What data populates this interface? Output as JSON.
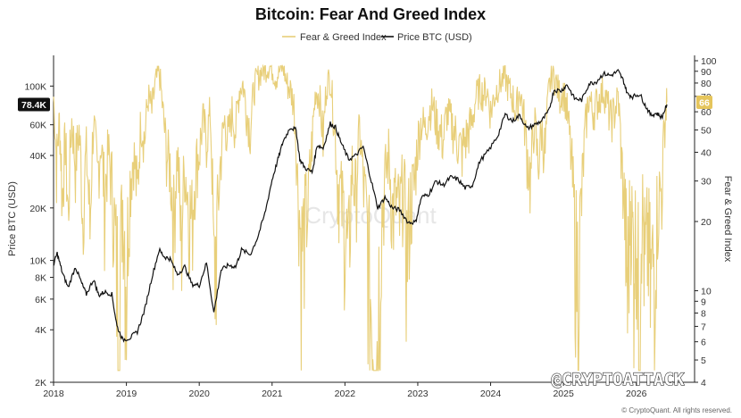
{
  "chart_data": {
    "type": "line",
    "title": "Bitcoin: Fear And Greed Index",
    "watermark": "CryptoQuant",
    "handle": "@CRYPTOATTACK",
    "footer": "© CryptoQuant. All rights reserved.",
    "legend": {
      "placement": "top-center",
      "entries": [
        "Fear & Greed Index",
        "Price BTC (USD)"
      ]
    },
    "x_ticks": [
      "2018",
      "2019",
      "2020",
      "2021",
      "2022",
      "2023",
      "2024",
      "2025",
      "2026"
    ],
    "y_left": {
      "label": "Price BTC (USD)",
      "scale": "log",
      "range": [
        2000,
        150000
      ],
      "ticks": [
        {
          "value": 100000,
          "label": "100K"
        },
        {
          "value": 60000,
          "label": "60K"
        },
        {
          "value": 40000,
          "label": "40K"
        },
        {
          "value": 20000,
          "label": "20K"
        },
        {
          "value": 10000,
          "label": "10K"
        },
        {
          "value": 8000,
          "label": "8K"
        },
        {
          "value": 6000,
          "label": "6K"
        },
        {
          "value": 4000,
          "label": "4K"
        },
        {
          "value": 2000,
          "label": "2K"
        }
      ],
      "current_label": "78.4K",
      "current_value": 78400
    },
    "y_right": {
      "label": "Fear & Greed Index",
      "scale": "log",
      "range": [
        4,
        100
      ],
      "ticks": [
        {
          "value": 100,
          "label": "100"
        },
        {
          "value": 90,
          "label": "90"
        },
        {
          "value": 80,
          "label": "80"
        },
        {
          "value": 70,
          "label": "70"
        },
        {
          "value": 60,
          "label": "60"
        },
        {
          "value": 50,
          "label": "50"
        },
        {
          "value": 40,
          "label": "40"
        },
        {
          "value": 30,
          "label": "30"
        },
        {
          "value": 20,
          "label": "20"
        },
        {
          "value": 10,
          "label": "10"
        },
        {
          "value": 9,
          "label": "9"
        },
        {
          "value": 8,
          "label": "8"
        },
        {
          "value": 7,
          "label": "7"
        },
        {
          "value": 6,
          "label": "6"
        },
        {
          "value": 5,
          "label": "5"
        },
        {
          "value": 4,
          "label": "4"
        }
      ],
      "current_label": "66",
      "current_value": 66
    },
    "colors": {
      "fng": "#e8cf7a",
      "price": "#111111",
      "badge_price": "#111111",
      "badge_fng": "#e5c55c"
    },
    "price_series": {
      "name": "Price BTC (USD)",
      "points": [
        [
          2018.0,
          9500
        ],
        [
          2018.05,
          11000
        ],
        [
          2018.12,
          8500
        ],
        [
          2018.2,
          7000
        ],
        [
          2018.3,
          9200
        ],
        [
          2018.38,
          7500
        ],
        [
          2018.45,
          6400
        ],
        [
          2018.55,
          7800
        ],
        [
          2018.62,
          6300
        ],
        [
          2018.7,
          6600
        ],
        [
          2018.8,
          6400
        ],
        [
          2018.87,
          4200
        ],
        [
          2018.95,
          3500
        ],
        [
          2019.05,
          3600
        ],
        [
          2019.15,
          3900
        ],
        [
          2019.25,
          5200
        ],
        [
          2019.35,
          8000
        ],
        [
          2019.45,
          11500
        ],
        [
          2019.52,
          10500
        ],
        [
          2019.6,
          10200
        ],
        [
          2019.7,
          8300
        ],
        [
          2019.8,
          9200
        ],
        [
          2019.9,
          7300
        ],
        [
          2020.0,
          7200
        ],
        [
          2020.1,
          9700
        ],
        [
          2020.2,
          5000
        ],
        [
          2020.3,
          8800
        ],
        [
          2020.4,
          9400
        ],
        [
          2020.5,
          9200
        ],
        [
          2020.58,
          11500
        ],
        [
          2020.7,
          10800
        ],
        [
          2020.8,
          13500
        ],
        [
          2020.9,
          18500
        ],
        [
          2021.0,
          29000
        ],
        [
          2021.08,
          38000
        ],
        [
          2021.15,
          48000
        ],
        [
          2021.25,
          58000
        ],
        [
          2021.33,
          56000
        ],
        [
          2021.38,
          38000
        ],
        [
          2021.45,
          34000
        ],
        [
          2021.55,
          32000
        ],
        [
          2021.62,
          46000
        ],
        [
          2021.7,
          44000
        ],
        [
          2021.8,
          61000
        ],
        [
          2021.87,
          58000
        ],
        [
          2021.95,
          47000
        ],
        [
          2022.05,
          38000
        ],
        [
          2022.15,
          40000
        ],
        [
          2022.25,
          45000
        ],
        [
          2022.35,
          30000
        ],
        [
          2022.45,
          20000
        ],
        [
          2022.55,
          23000
        ],
        [
          2022.65,
          20000
        ],
        [
          2022.75,
          19500
        ],
        [
          2022.87,
          16500
        ],
        [
          2022.97,
          16600
        ],
        [
          2023.05,
          23000
        ],
        [
          2023.15,
          24000
        ],
        [
          2023.25,
          28500
        ],
        [
          2023.35,
          27000
        ],
        [
          2023.45,
          30000
        ],
        [
          2023.55,
          29200
        ],
        [
          2023.65,
          26000
        ],
        [
          2023.75,
          27000
        ],
        [
          2023.85,
          37000
        ],
        [
          2023.97,
          42500
        ],
        [
          2024.1,
          52000
        ],
        [
          2024.2,
          69000
        ],
        [
          2024.3,
          63000
        ],
        [
          2024.4,
          68000
        ],
        [
          2024.5,
          57000
        ],
        [
          2024.6,
          60000
        ],
        [
          2024.7,
          63000
        ],
        [
          2024.8,
          72000
        ],
        [
          2024.87,
          95000
        ],
        [
          2024.97,
          94000
        ],
        [
          2025.05,
          102000
        ],
        [
          2025.15,
          85000
        ],
        [
          2025.25,
          83000
        ],
        [
          2025.35,
          103000
        ],
        [
          2025.45,
          106000
        ],
        [
          2025.55,
          118000
        ],
        [
          2025.65,
          115000
        ],
        [
          2025.75,
          122000
        ],
        [
          2025.82,
          108000
        ],
        [
          2025.88,
          90000
        ],
        [
          2025.95,
          87000
        ],
        [
          2026.05,
          90000
        ],
        [
          2026.12,
          78000
        ],
        [
          2026.2,
          68000
        ],
        [
          2026.28,
          70000
        ],
        [
          2026.35,
          66000
        ],
        [
          2026.42,
          78400
        ]
      ]
    },
    "fng_series": {
      "name": "Fear & Greed Index",
      "points": [
        [
          2018.0,
          70
        ],
        [
          2018.04,
          35
        ],
        [
          2018.08,
          55
        ],
        [
          2018.12,
          25
        ],
        [
          2018.16,
          45
        ],
        [
          2018.2,
          20
        ],
        [
          2018.25,
          55
        ],
        [
          2018.3,
          35
        ],
        [
          2018.35,
          50
        ],
        [
          2018.4,
          22
        ],
        [
          2018.45,
          40
        ],
        [
          2018.5,
          18
        ],
        [
          2018.55,
          55
        ],
        [
          2018.6,
          30
        ],
        [
          2018.65,
          45
        ],
        [
          2018.7,
          25
        ],
        [
          2018.75,
          40
        ],
        [
          2018.8,
          30
        ],
        [
          2018.85,
          15
        ],
        [
          2018.9,
          10
        ],
        [
          2018.95,
          25
        ],
        [
          2019.0,
          12
        ],
        [
          2019.05,
          30
        ],
        [
          2019.1,
          40
        ],
        [
          2019.15,
          25
        ],
        [
          2019.2,
          55
        ],
        [
          2019.25,
          45
        ],
        [
          2019.3,
          70
        ],
        [
          2019.35,
          60
        ],
        [
          2019.4,
          80
        ],
        [
          2019.45,
          90
        ],
        [
          2019.5,
          60
        ],
        [
          2019.55,
          40
        ],
        [
          2019.6,
          35
        ],
        [
          2019.65,
          20
        ],
        [
          2019.7,
          40
        ],
        [
          2019.75,
          15
        ],
        [
          2019.8,
          35
        ],
        [
          2019.85,
          25
        ],
        [
          2019.9,
          20
        ],
        [
          2019.95,
          35
        ],
        [
          2020.0,
          40
        ],
        [
          2020.05,
          55
        ],
        [
          2020.1,
          45
        ],
        [
          2020.15,
          60
        ],
        [
          2020.2,
          10
        ],
        [
          2020.25,
          20
        ],
        [
          2020.3,
          40
        ],
        [
          2020.35,
          55
        ],
        [
          2020.4,
          45
        ],
        [
          2020.45,
          60
        ],
        [
          2020.5,
          50
        ],
        [
          2020.55,
          75
        ],
        [
          2020.6,
          80
        ],
        [
          2020.65,
          60
        ],
        [
          2020.7,
          50
        ],
        [
          2020.75,
          75
        ],
        [
          2020.8,
          85
        ],
        [
          2020.85,
          90
        ],
        [
          2020.9,
          92
        ],
        [
          2020.95,
          95
        ],
        [
          2021.0,
          93
        ],
        [
          2021.05,
          85
        ],
        [
          2021.1,
          90
        ],
        [
          2021.15,
          95
        ],
        [
          2021.2,
          80
        ],
        [
          2021.25,
          75
        ],
        [
          2021.3,
          65
        ],
        [
          2021.35,
          30
        ],
        [
          2021.4,
          15
        ],
        [
          2021.45,
          20
        ],
        [
          2021.5,
          25
        ],
        [
          2021.55,
          45
        ],
        [
          2021.6,
          75
        ],
        [
          2021.65,
          70
        ],
        [
          2021.7,
          45
        ],
        [
          2021.75,
          80
        ],
        [
          2021.8,
          84
        ],
        [
          2021.85,
          55
        ],
        [
          2021.9,
          30
        ],
        [
          2021.95,
          25
        ],
        [
          2022.0,
          20
        ],
        [
          2022.05,
          12
        ],
        [
          2022.1,
          35
        ],
        [
          2022.15,
          25
        ],
        [
          2022.2,
          50
        ],
        [
          2022.25,
          30
        ],
        [
          2022.3,
          20
        ],
        [
          2022.35,
          10
        ],
        [
          2022.4,
          8
        ],
        [
          2022.45,
          6
        ],
        [
          2022.5,
          20
        ],
        [
          2022.55,
          30
        ],
        [
          2022.6,
          40
        ],
        [
          2022.65,
          22
        ],
        [
          2022.7,
          25
        ],
        [
          2022.75,
          20
        ],
        [
          2022.8,
          30
        ],
        [
          2022.85,
          15
        ],
        [
          2022.9,
          25
        ],
        [
          2022.95,
          28
        ],
        [
          2023.0,
          45
        ],
        [
          2023.05,
          55
        ],
        [
          2023.1,
          50
        ],
        [
          2023.15,
          60
        ],
        [
          2023.2,
          65
        ],
        [
          2023.25,
          55
        ],
        [
          2023.3,
          50
        ],
        [
          2023.35,
          45
        ],
        [
          2023.4,
          60
        ],
        [
          2023.45,
          55
        ],
        [
          2023.5,
          50
        ],
        [
          2023.55,
          45
        ],
        [
          2023.6,
          40
        ],
        [
          2023.65,
          45
        ],
        [
          2023.7,
          50
        ],
        [
          2023.75,
          55
        ],
        [
          2023.8,
          70
        ],
        [
          2023.85,
          75
        ],
        [
          2023.9,
          72
        ],
        [
          2023.95,
          75
        ],
        [
          2024.0,
          60
        ],
        [
          2024.05,
          70
        ],
        [
          2024.1,
          78
        ],
        [
          2024.15,
          82
        ],
        [
          2024.2,
          85
        ],
        [
          2024.25,
          75
        ],
        [
          2024.3,
          70
        ],
        [
          2024.35,
          60
        ],
        [
          2024.4,
          75
        ],
        [
          2024.45,
          60
        ],
        [
          2024.5,
          40
        ],
        [
          2024.55,
          30
        ],
        [
          2024.6,
          55
        ],
        [
          2024.65,
          35
        ],
        [
          2024.7,
          50
        ],
        [
          2024.75,
          40
        ],
        [
          2024.8,
          75
        ],
        [
          2024.85,
          90
        ],
        [
          2024.9,
          80
        ],
        [
          2024.95,
          70
        ],
        [
          2025.0,
          75
        ],
        [
          2025.05,
          60
        ],
        [
          2025.1,
          40
        ],
        [
          2025.15,
          20
        ],
        [
          2025.2,
          12
        ],
        [
          2025.25,
          25
        ],
        [
          2025.3,
          50
        ],
        [
          2025.35,
          70
        ],
        [
          2025.4,
          60
        ],
        [
          2025.45,
          65
        ],
        [
          2025.5,
          70
        ],
        [
          2025.55,
          75
        ],
        [
          2025.6,
          65
        ],
        [
          2025.65,
          55
        ],
        [
          2025.7,
          60
        ],
        [
          2025.75,
          70
        ],
        [
          2025.8,
          35
        ],
        [
          2025.85,
          20
        ],
        [
          2025.88,
          10
        ],
        [
          2025.92,
          25
        ],
        [
          2025.96,
          15
        ],
        [
          2026.0,
          20
        ],
        [
          2026.04,
          8
        ],
        [
          2026.08,
          25
        ],
        [
          2026.12,
          12
        ],
        [
          2026.16,
          18
        ],
        [
          2026.2,
          10
        ],
        [
          2026.25,
          15
        ],
        [
          2026.3,
          25
        ],
        [
          2026.35,
          28
        ],
        [
          2026.4,
          60
        ],
        [
          2026.42,
          66
        ]
      ]
    }
  }
}
